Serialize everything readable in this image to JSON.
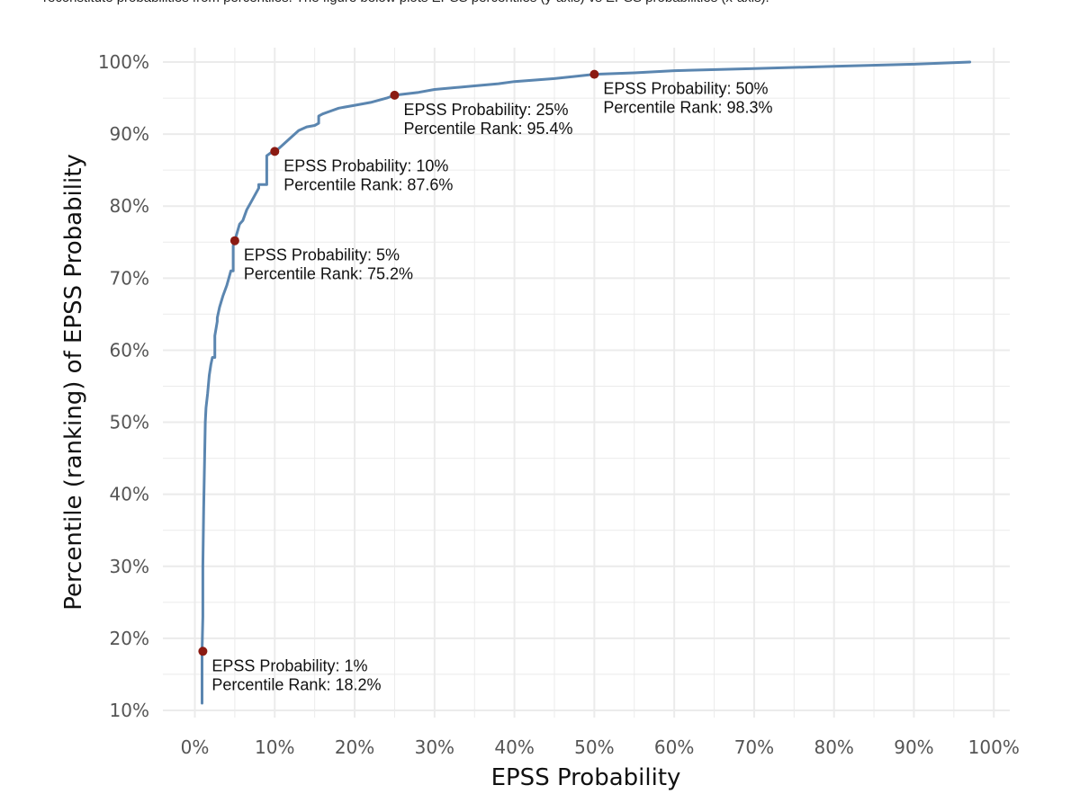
{
  "page": {
    "caption": "reconstitute probabilities from percentiles. The figure below plots EPSS percentiles (y-axis) vs EPSS probabilities (x-axis)."
  },
  "chart_data": {
    "type": "line",
    "xlabel": "EPSS Probability",
    "ylabel": "Percentile (ranking) of EPSS Probability",
    "xlim": [
      -0.04,
      1.02
    ],
    "ylim": [
      0.09,
      1.02
    ],
    "x_ticks": [
      0,
      0.1,
      0.2,
      0.3,
      0.4,
      0.5,
      0.6,
      0.7,
      0.8,
      0.9,
      1.0
    ],
    "x_tick_labels": [
      "0%",
      "10%",
      "20%",
      "30%",
      "40%",
      "50%",
      "60%",
      "70%",
      "80%",
      "90%",
      "100%"
    ],
    "y_ticks": [
      0.1,
      0.2,
      0.3,
      0.4,
      0.5,
      0.6,
      0.7,
      0.8,
      0.9,
      1.0
    ],
    "y_tick_labels": [
      "10%",
      "20%",
      "30%",
      "40%",
      "50%",
      "60%",
      "70%",
      "80%",
      "90%",
      "100%"
    ],
    "grid": true,
    "colors": {
      "line": "#5b86b0",
      "point": "#8b1a12",
      "grid": "#ebebeb"
    },
    "series": [
      {
        "x": [
          0.009,
          0.009,
          0.01,
          0.01,
          0.011,
          0.012,
          0.013,
          0.014,
          0.016,
          0.018,
          0.02,
          0.022,
          0.025,
          0.025,
          0.028,
          0.028,
          0.031,
          0.035,
          0.04,
          0.045,
          0.048,
          0.048,
          0.05,
          0.052,
          0.056,
          0.06,
          0.065,
          0.07,
          0.075,
          0.08,
          0.08,
          0.09,
          0.09,
          0.095,
          0.1,
          0.105,
          0.11,
          0.115,
          0.12,
          0.13,
          0.14,
          0.15,
          0.155,
          0.155,
          0.16,
          0.17,
          0.18,
          0.2,
          0.22,
          0.24,
          0.25,
          0.28,
          0.3,
          0.33,
          0.35,
          0.38,
          0.4,
          0.45,
          0.5,
          0.55,
          0.6,
          0.7,
          0.8,
          0.9,
          0.97
        ],
        "y": [
          0.11,
          0.182,
          0.23,
          0.3,
          0.38,
          0.44,
          0.5,
          0.52,
          0.54,
          0.565,
          0.58,
          0.59,
          0.59,
          0.62,
          0.64,
          0.645,
          0.66,
          0.675,
          0.69,
          0.71,
          0.71,
          0.745,
          0.752,
          0.76,
          0.775,
          0.78,
          0.795,
          0.805,
          0.815,
          0.825,
          0.83,
          0.83,
          0.87,
          0.874,
          0.876,
          0.88,
          0.885,
          0.89,
          0.895,
          0.905,
          0.91,
          0.912,
          0.915,
          0.925,
          0.928,
          0.932,
          0.936,
          0.94,
          0.944,
          0.95,
          0.954,
          0.958,
          0.962,
          0.965,
          0.967,
          0.97,
          0.973,
          0.977,
          0.983,
          0.985,
          0.988,
          0.991,
          0.994,
          0.997,
          1.0
        ]
      }
    ],
    "annotations": [
      {
        "x": 0.01,
        "y": 0.182,
        "line1": "EPSS Probability: 1%",
        "line2": "Percentile Rank: 18.2%"
      },
      {
        "x": 0.05,
        "y": 0.752,
        "line1": "EPSS Probability: 5%",
        "line2": "Percentile Rank: 75.2%"
      },
      {
        "x": 0.1,
        "y": 0.876,
        "line1": "EPSS Probability: 10%",
        "line2": "Percentile Rank: 87.6%"
      },
      {
        "x": 0.25,
        "y": 0.954,
        "line1": "EPSS Probability: 25%",
        "line2": "Percentile Rank: 95.4%"
      },
      {
        "x": 0.5,
        "y": 0.983,
        "line1": "EPSS Probability: 50%",
        "line2": "Percentile Rank: 98.3%"
      }
    ]
  }
}
